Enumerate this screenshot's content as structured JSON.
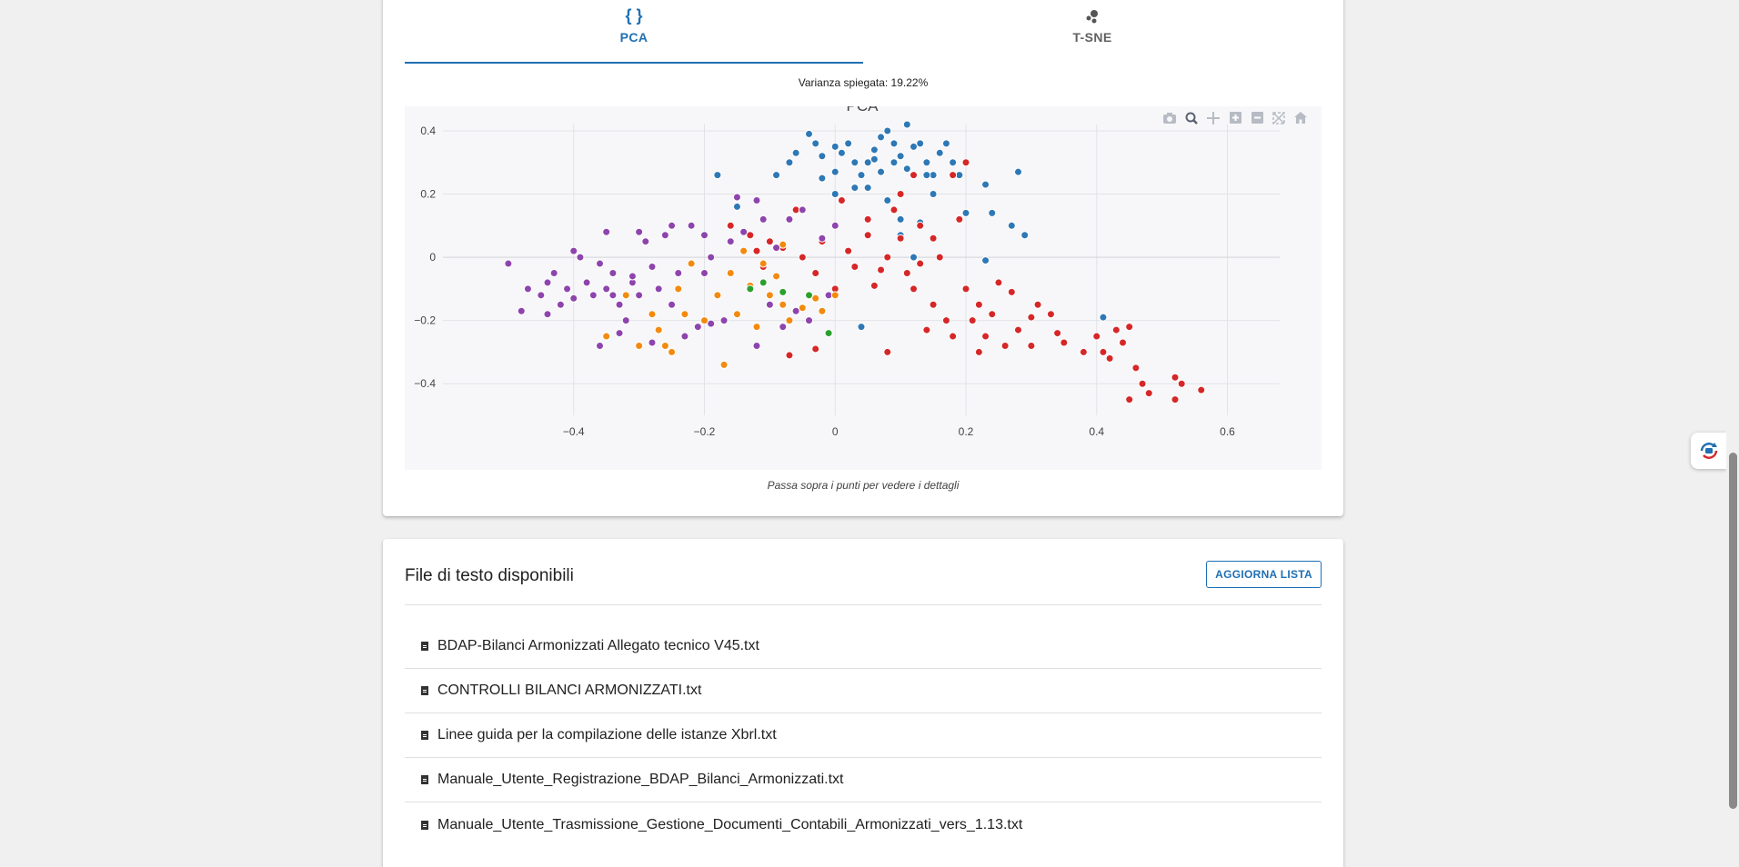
{
  "tabs": [
    {
      "label": "PCA",
      "icon": "code-braces-icon",
      "active": true
    },
    {
      "label": "T-SNE",
      "icon": "scatter-dots-icon",
      "active": false
    }
  ],
  "variance_text": "Varianza spiegata: 19.22%",
  "hint_text": "Passa sopra i punti per vedere i dettagli",
  "modebar": [
    "camera-icon",
    "zoom-icon",
    "pan-icon",
    "zoom-in-icon",
    "zoom-out-icon",
    "autoscale-icon",
    "home-icon"
  ],
  "chart_data": {
    "type": "scatter",
    "title": "PCA",
    "xlabel": "",
    "ylabel": "",
    "xlim": [
      -0.6,
      0.68
    ],
    "ylim": [
      -0.5,
      0.42
    ],
    "xticks": [
      "−0.4",
      "−0.2",
      "0",
      "0.2",
      "0.4",
      "0.6"
    ],
    "yticks": [
      "0.4",
      "0.2",
      "0",
      "−0.2",
      "−0.4"
    ],
    "xtick_values": [
      -0.4,
      -0.2,
      0,
      0.2,
      0.4,
      0.6
    ],
    "ytick_values": [
      0.4,
      0.2,
      0,
      -0.2,
      -0.4
    ],
    "grid": true,
    "legend": "none",
    "series": [
      {
        "color": "#2e78b5",
        "points": [
          [
            -0.18,
            0.26
          ],
          [
            -0.15,
            0.16
          ],
          [
            -0.07,
            0.3
          ],
          [
            -0.06,
            0.33
          ],
          [
            -0.04,
            0.39
          ],
          [
            -0.03,
            0.36
          ],
          [
            -0.02,
            0.32
          ],
          [
            0.0,
            0.35
          ],
          [
            0.01,
            0.33
          ],
          [
            0.02,
            0.36
          ],
          [
            0.03,
            0.3
          ],
          [
            0.04,
            0.26
          ],
          [
            0.05,
            0.3
          ],
          [
            0.06,
            0.34
          ],
          [
            0.07,
            0.38
          ],
          [
            0.08,
            0.4
          ],
          [
            0.09,
            0.36
          ],
          [
            0.1,
            0.32
          ],
          [
            0.11,
            0.28
          ],
          [
            0.12,
            0.35
          ],
          [
            0.13,
            0.36
          ],
          [
            0.14,
            0.3
          ],
          [
            0.15,
            0.26
          ],
          [
            0.16,
            0.33
          ],
          [
            0.17,
            0.36
          ],
          [
            0.18,
            0.3
          ],
          [
            0.19,
            0.26
          ],
          [
            0.2,
            0.14
          ],
          [
            0.23,
            0.23
          ],
          [
            0.24,
            0.14
          ],
          [
            0.27,
            0.1
          ],
          [
            0.29,
            0.07
          ],
          [
            0.28,
            0.27
          ],
          [
            0.07,
            0.27
          ],
          [
            0.05,
            0.22
          ],
          [
            0.0,
            0.27
          ],
          [
            -0.02,
            0.25
          ],
          [
            0.03,
            0.22
          ],
          [
            0.1,
            0.12
          ],
          [
            0.1,
            0.07
          ],
          [
            0.13,
            0.11
          ],
          [
            0.12,
            0.0
          ],
          [
            0.23,
            -0.01
          ],
          [
            0.04,
            -0.22
          ],
          [
            0.41,
            -0.19
          ],
          [
            -0.09,
            0.26
          ],
          [
            0.06,
            0.31
          ],
          [
            0.09,
            0.3
          ],
          [
            0.11,
            0.42
          ],
          [
            0.14,
            0.26
          ],
          [
            0.15,
            0.2
          ],
          [
            0.08,
            0.18
          ],
          [
            0.0,
            0.2
          ]
        ]
      },
      {
        "color": "#d62728",
        "points": [
          [
            -0.16,
            0.1
          ],
          [
            -0.13,
            0.07
          ],
          [
            -0.1,
            0.05
          ],
          [
            -0.08,
            0.03
          ],
          [
            -0.06,
            0.15
          ],
          [
            -0.05,
            0.0
          ],
          [
            -0.03,
            -0.05
          ],
          [
            -0.02,
            0.05
          ],
          [
            0.0,
            -0.1
          ],
          [
            0.02,
            0.02
          ],
          [
            0.03,
            -0.03
          ],
          [
            0.05,
            0.07
          ],
          [
            0.06,
            -0.09
          ],
          [
            0.08,
            0.0
          ],
          [
            0.1,
            0.06
          ],
          [
            0.11,
            -0.05
          ],
          [
            0.12,
            -0.1
          ],
          [
            0.13,
            0.1
          ],
          [
            0.15,
            -0.15
          ],
          [
            0.16,
            0.0
          ],
          [
            0.17,
            -0.2
          ],
          [
            0.18,
            -0.25
          ],
          [
            0.19,
            0.12
          ],
          [
            0.2,
            -0.1
          ],
          [
            0.21,
            -0.2
          ],
          [
            0.22,
            -0.3
          ],
          [
            0.23,
            -0.25
          ],
          [
            0.24,
            -0.18
          ],
          [
            0.26,
            -0.28
          ],
          [
            0.28,
            -0.23
          ],
          [
            0.3,
            -0.28
          ],
          [
            0.31,
            -0.15
          ],
          [
            0.33,
            -0.18
          ],
          [
            0.35,
            -0.27
          ],
          [
            0.38,
            -0.3
          ],
          [
            0.4,
            -0.25
          ],
          [
            0.41,
            -0.3
          ],
          [
            0.42,
            -0.32
          ],
          [
            0.43,
            -0.23
          ],
          [
            0.44,
            -0.27
          ],
          [
            0.45,
            -0.22
          ],
          [
            0.46,
            -0.35
          ],
          [
            0.47,
            -0.4
          ],
          [
            0.48,
            -0.43
          ],
          [
            0.52,
            -0.38
          ],
          [
            0.53,
            -0.4
          ],
          [
            0.56,
            -0.42
          ],
          [
            0.45,
            -0.45
          ],
          [
            0.52,
            -0.45
          ],
          [
            0.08,
            -0.3
          ],
          [
            -0.03,
            -0.29
          ],
          [
            -0.07,
            -0.31
          ],
          [
            0.1,
            0.2
          ],
          [
            0.12,
            0.26
          ],
          [
            0.18,
            0.26
          ],
          [
            0.01,
            0.18
          ],
          [
            0.2,
            0.3
          ],
          [
            0.15,
            0.06
          ],
          [
            0.05,
            0.12
          ],
          [
            0.09,
            0.15
          ],
          [
            0.13,
            -0.02
          ],
          [
            0.07,
            -0.04
          ],
          [
            -0.11,
            -0.03
          ],
          [
            -0.12,
            0.02
          ],
          [
            0.25,
            -0.08
          ],
          [
            0.27,
            -0.11
          ],
          [
            0.3,
            -0.19
          ],
          [
            0.34,
            -0.24
          ],
          [
            0.22,
            -0.15
          ],
          [
            0.14,
            -0.23
          ]
        ]
      },
      {
        "color": "#8e44ad",
        "points": [
          [
            -0.5,
            -0.02
          ],
          [
            -0.47,
            -0.1
          ],
          [
            -0.45,
            -0.12
          ],
          [
            -0.44,
            -0.08
          ],
          [
            -0.43,
            -0.05
          ],
          [
            -0.42,
            -0.15
          ],
          [
            -0.41,
            -0.1
          ],
          [
            -0.4,
            -0.13
          ],
          [
            -0.39,
            0.0
          ],
          [
            -0.38,
            -0.08
          ],
          [
            -0.37,
            -0.12
          ],
          [
            -0.36,
            -0.02
          ],
          [
            -0.35,
            -0.1
          ],
          [
            -0.34,
            -0.05
          ],
          [
            -0.33,
            -0.15
          ],
          [
            -0.32,
            -0.2
          ],
          [
            -0.31,
            -0.08
          ],
          [
            -0.3,
            -0.12
          ],
          [
            -0.29,
            0.05
          ],
          [
            -0.28,
            -0.03
          ],
          [
            -0.27,
            -0.1
          ],
          [
            -0.26,
            0.07
          ],
          [
            -0.25,
            -0.15
          ],
          [
            -0.24,
            -0.05
          ],
          [
            -0.23,
            -0.18
          ],
          [
            -0.22,
            0.1
          ],
          [
            -0.21,
            -0.22
          ],
          [
            -0.2,
            -0.05
          ],
          [
            -0.19,
            0.0
          ],
          [
            -0.18,
            -0.12
          ],
          [
            -0.17,
            -0.2
          ],
          [
            -0.16,
            0.05
          ],
          [
            -0.15,
            -0.18
          ],
          [
            -0.14,
            0.08
          ],
          [
            -0.13,
            -0.1
          ],
          [
            -0.12,
            -0.28
          ],
          [
            -0.11,
            0.12
          ],
          [
            -0.1,
            -0.15
          ],
          [
            -0.09,
            0.03
          ],
          [
            -0.08,
            -0.22
          ],
          [
            -0.06,
            -0.17
          ],
          [
            -0.04,
            -0.2
          ],
          [
            -0.02,
            0.06
          ],
          [
            -0.01,
            -0.12
          ],
          [
            0.0,
            0.1
          ],
          [
            -0.48,
            -0.17
          ],
          [
            -0.44,
            -0.18
          ],
          [
            -0.36,
            -0.28
          ],
          [
            -0.33,
            -0.24
          ],
          [
            -0.28,
            -0.27
          ],
          [
            -0.25,
            0.1
          ],
          [
            -0.2,
            0.07
          ],
          [
            -0.3,
            0.08
          ],
          [
            -0.35,
            0.08
          ],
          [
            -0.23,
            -0.25
          ],
          [
            -0.19,
            -0.21
          ],
          [
            -0.15,
            0.19
          ],
          [
            -0.12,
            0.18
          ],
          [
            -0.05,
            0.15
          ],
          [
            -0.07,
            0.12
          ],
          [
            -0.4,
            0.02
          ],
          [
            -0.31,
            -0.06
          ],
          [
            -0.34,
            -0.12
          ]
        ]
      },
      {
        "color": "#f28a0f",
        "points": [
          [
            -0.35,
            -0.25
          ],
          [
            -0.32,
            -0.12
          ],
          [
            -0.3,
            -0.28
          ],
          [
            -0.28,
            -0.18
          ],
          [
            -0.27,
            -0.23
          ],
          [
            -0.25,
            -0.3
          ],
          [
            -0.24,
            -0.1
          ],
          [
            -0.22,
            -0.02
          ],
          [
            -0.2,
            -0.2
          ],
          [
            -0.18,
            -0.12
          ],
          [
            -0.17,
            -0.34
          ],
          [
            -0.16,
            -0.05
          ],
          [
            -0.15,
            -0.18
          ],
          [
            -0.13,
            -0.09
          ],
          [
            -0.12,
            -0.22
          ],
          [
            -0.11,
            -0.02
          ],
          [
            -0.1,
            -0.12
          ],
          [
            -0.09,
            -0.06
          ],
          [
            -0.08,
            -0.15
          ],
          [
            -0.07,
            -0.2
          ],
          [
            -0.05,
            -0.16
          ],
          [
            -0.03,
            -0.13
          ],
          [
            -0.02,
            -0.17
          ],
          [
            0.0,
            -0.12
          ],
          [
            -0.26,
            -0.28
          ],
          [
            -0.23,
            -0.18
          ],
          [
            -0.14,
            0.02
          ],
          [
            -0.08,
            0.04
          ]
        ]
      },
      {
        "color": "#2ca02c",
        "points": [
          [
            -0.13,
            -0.1
          ],
          [
            -0.11,
            -0.08
          ],
          [
            -0.08,
            -0.11
          ],
          [
            -0.04,
            -0.12
          ],
          [
            -0.01,
            -0.24
          ]
        ]
      }
    ]
  },
  "files_card": {
    "title": "File di testo disponibili",
    "refresh_label": "AGGIORNA LISTA",
    "files": [
      "BDAP-Bilanci Armonizzati Allegato tecnico V45.txt",
      "CONTROLLI BILANCI ARMONIZZATI.txt",
      "Linee guida per la compilazione delle istanze Xbrl.txt",
      "Manuale_Utente_Registrazione_BDAP_Bilanci_Armonizzati.txt",
      "Manuale_Utente_Trasmissione_Gestione_Documenti_Contabili_Armonizzati_vers_1.13.txt"
    ]
  }
}
